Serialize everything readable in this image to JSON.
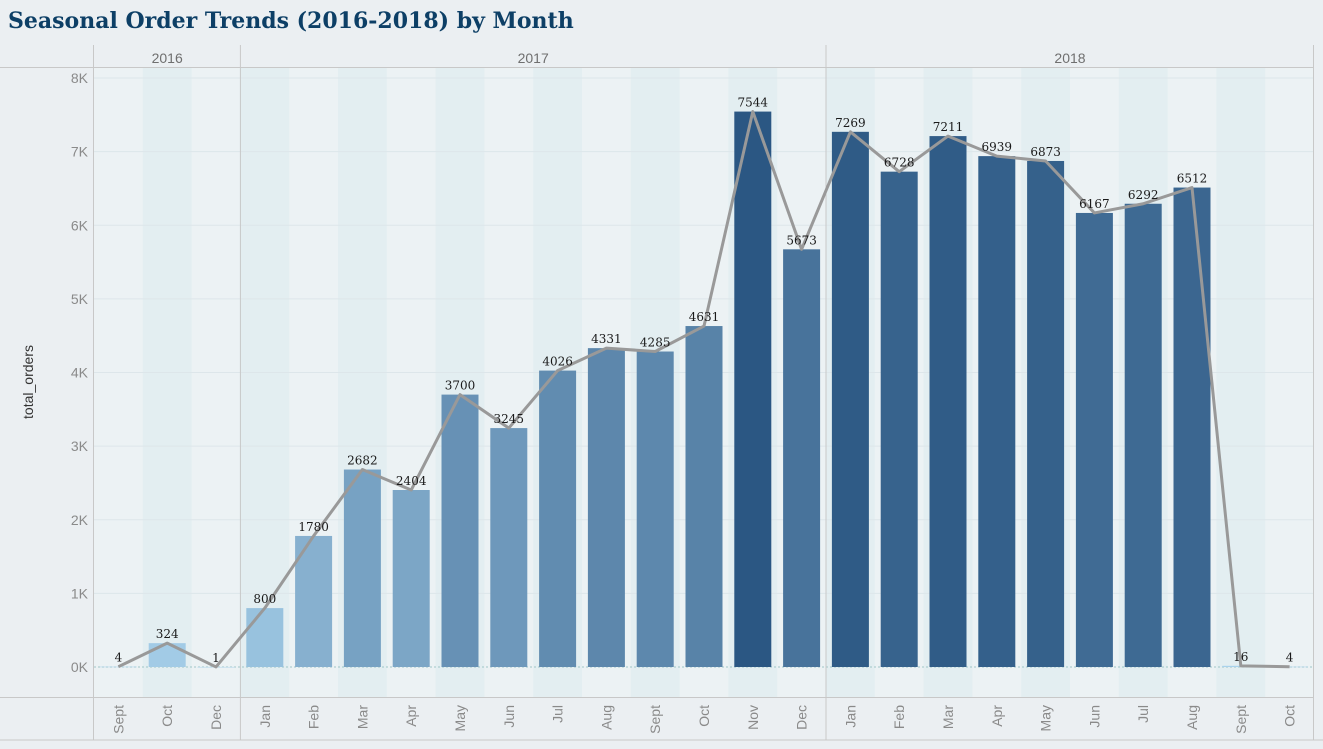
{
  "title": "Seasonal Order Trends (2016-2018) by Month",
  "chart_data": {
    "type": "bar",
    "title": "Seasonal Order Trends (2016-2018) by Month",
    "ylabel": "total_orders",
    "xlabel": "",
    "ylim": [
      0,
      8000
    ],
    "yticks": [
      "0K",
      "1K",
      "2K",
      "3K",
      "4K",
      "5K",
      "6K",
      "7K",
      "8K"
    ],
    "grid": true,
    "overlay_line": true,
    "years": [
      {
        "label": "2016",
        "months": [
          "Sept",
          "Oct",
          "Dec"
        ],
        "values": [
          4,
          324,
          1
        ]
      },
      {
        "label": "2017",
        "months": [
          "Jan",
          "Feb",
          "Mar",
          "Apr",
          "May",
          "Jun",
          "Jul",
          "Aug",
          "Sept",
          "Oct",
          "Nov",
          "Dec"
        ],
        "values": [
          800,
          1780,
          2682,
          2404,
          3700,
          3245,
          4026,
          4331,
          4285,
          4631,
          7544,
          5673
        ]
      },
      {
        "label": "2018",
        "months": [
          "Jan",
          "Feb",
          "Mar",
          "Apr",
          "May",
          "Jun",
          "Jul",
          "Aug",
          "Sept",
          "Oct"
        ],
        "values": [
          7269,
          6728,
          7211,
          6939,
          6873,
          6167,
          6292,
          6512,
          16,
          4
        ]
      }
    ],
    "colors": {
      "low": "#a9d2ec",
      "high": "#2b5783",
      "line": "#999999"
    }
  }
}
